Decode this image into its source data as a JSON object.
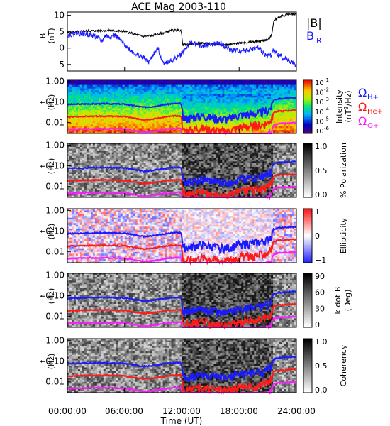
{
  "title": "ACE Mag 2003-110",
  "colors": {
    "btotal": "#000000",
    "br": "#1a1aff",
    "h_plus": "#1a1aff",
    "he_plus": "#ff1a1a",
    "o_plus": "#ff1aff"
  },
  "x_axis": {
    "label": "Time (UT)",
    "ticks": [
      "00:00:00",
      "06:00:00",
      "12:00:00",
      "18:00:00",
      "24:00:00"
    ],
    "range_hours": [
      0,
      24
    ]
  },
  "chart_data": [
    {
      "type": "line",
      "panel": "magnetic-field",
      "ylabel_top": "B",
      "ylabel_bottom": "(nT)",
      "ylim": [
        -7,
        11
      ],
      "yticks": [
        "10",
        "5",
        "0",
        "-5"
      ],
      "legend": {
        "btotal": "|B|",
        "br": "B",
        "br_sub": "R"
      },
      "series": [
        {
          "name": "|B|",
          "x": [
            0,
            1,
            2,
            3,
            4,
            5,
            6,
            7,
            8,
            9,
            10,
            11,
            11.9,
            12.1,
            13,
            14,
            15,
            16,
            17,
            18,
            19,
            20,
            21,
            21.4,
            21.6,
            22,
            23,
            24
          ],
          "values": [
            4.6,
            5.0,
            5.2,
            5.3,
            5.4,
            5.3,
            5.1,
            4.3,
            3.5,
            3.9,
            4.6,
            5.4,
            5.5,
            1.0,
            1.2,
            1.5,
            1.3,
            1.0,
            1.0,
            1.6,
            1.8,
            2.0,
            2.6,
            3.8,
            8.0,
            9.3,
            10.2,
            10.5
          ]
        },
        {
          "name": "B",
          "x": [
            0,
            1,
            2,
            3,
            3.6,
            4,
            4.5,
            5,
            6,
            7,
            8,
            8.5,
            9,
            9.5,
            10,
            11,
            11.9,
            12.1,
            13,
            14,
            15,
            16,
            17,
            18,
            19,
            20,
            21,
            21.4,
            21.6,
            22,
            23,
            24
          ],
          "values": [
            4.0,
            4.5,
            4.3,
            3.6,
            2.0,
            3.8,
            3.5,
            3.9,
            1.0,
            -1.5,
            -3.0,
            -4.4,
            -2.0,
            0.0,
            -4.4,
            -3.8,
            -2.0,
            -1.0,
            1.8,
            0.5,
            1.0,
            1.5,
            -0.5,
            -0.8,
            -0.5,
            0.0,
            -2.5,
            -2.0,
            -0.5,
            -2.0,
            -3.5,
            -5.2
          ]
        }
      ]
    },
    {
      "type": "heatmap",
      "panel": "power-spectrum",
      "ylabel_top": "f",
      "ylabel_bottom": "(Hz)",
      "yticks": [
        "1.00",
        "0.10",
        "0.01"
      ],
      "colorbar_ticks": [
        "10",
        "10",
        "10",
        "10",
        "10",
        "10"
      ],
      "colorbar_exponents": [
        "-1",
        "-2",
        "-3",
        "-4",
        "-5",
        "-6"
      ],
      "colorbar_label_1": "Intensity",
      "colorbar_label_2": "(nT",
      "colorbar_label_2_sup": "2",
      "colorbar_label_2_end": "/Hz)",
      "legend": [
        {
          "text": "Ω",
          "sub": "H+"
        },
        {
          "text": "Ω",
          "sub": "He+"
        },
        {
          "text": "Ω",
          "sub": "O+"
        }
      ]
    },
    {
      "type": "heatmap",
      "panel": "polarization",
      "ylabel_top": "f",
      "ylabel_bottom": "(Hz)",
      "yticks": [
        "1.00",
        "0.10",
        "0.01"
      ],
      "colorbar_ticks": [
        "1.0",
        "0.5",
        "0.0"
      ],
      "colorbar_label": "% Polarization"
    },
    {
      "type": "heatmap",
      "panel": "ellipticity",
      "ylabel_top": "f",
      "ylabel_bottom": "(Hz)",
      "yticks": [
        "1.00",
        "0.10",
        "0.01"
      ],
      "colorbar_ticks": [
        "1",
        "0",
        "−1"
      ],
      "colorbar_label": "Ellipticity"
    },
    {
      "type": "heatmap",
      "panel": "k-dot-b",
      "ylabel_top": "f",
      "ylabel_bottom": "(Hz)",
      "yticks": [
        "1.00",
        "0.10",
        "0.01"
      ],
      "colorbar_ticks": [
        "90",
        "60",
        "30",
        "0"
      ],
      "colorbar_label_1": "k dot B",
      "colorbar_label_2": "(Deg)"
    },
    {
      "type": "heatmap",
      "panel": "coherency",
      "ylabel_top": "f",
      "ylabel_bottom": "(Hz)",
      "yticks": [
        "1.00",
        "0.10",
        "0.01"
      ],
      "colorbar_ticks": [
        "1.0",
        "0.5",
        "0.0"
      ],
      "colorbar_label": "Coherency"
    }
  ],
  "gyro_lines": {
    "x": [
      0,
      2,
      4,
      6,
      7,
      8,
      9,
      10,
      11,
      11.9,
      12.1,
      13,
      14,
      15,
      16,
      17,
      18,
      19,
      20,
      21,
      21.4,
      21.6,
      22,
      23,
      24
    ],
    "h_plus": [
      0.075,
      0.08,
      0.082,
      0.078,
      0.065,
      0.055,
      0.06,
      0.072,
      0.082,
      0.084,
      0.016,
      0.018,
      0.022,
      0.019,
      0.016,
      0.016,
      0.024,
      0.026,
      0.028,
      0.039,
      0.058,
      0.12,
      0.14,
      0.15,
      0.16
    ]
  }
}
